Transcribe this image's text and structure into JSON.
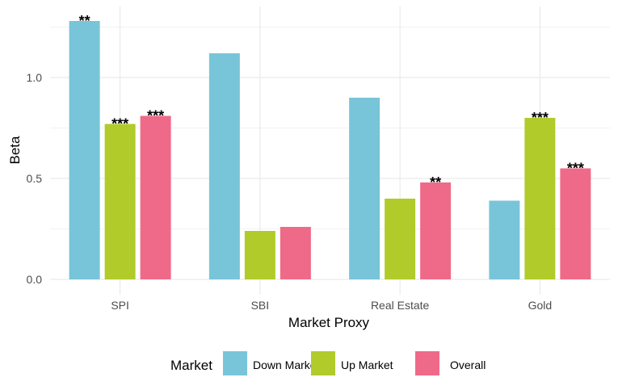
{
  "chart_data": {
    "type": "bar",
    "categories": [
      "SPI",
      "SBI",
      "Real Estate",
      "Gold"
    ],
    "series": [
      {
        "name": "Down Market",
        "values": [
          1.28,
          1.12,
          0.9,
          0.39
        ],
        "sig": [
          "**",
          "",
          "",
          ""
        ]
      },
      {
        "name": "Up Market",
        "values": [
          0.77,
          0.24,
          0.4,
          0.8
        ],
        "sig": [
          "***",
          "",
          "",
          "***"
        ]
      },
      {
        "name": "Overall",
        "values": [
          0.81,
          0.26,
          0.48,
          0.55
        ],
        "sig": [
          "***",
          "",
          "**",
          "***"
        ]
      }
    ],
    "xlabel": "Market Proxy",
    "ylabel": "Beta",
    "ylim": [
      0,
      1.35
    ],
    "yticks": [
      0.0,
      0.5,
      1.0
    ],
    "ytick_labels": [
      "0.0",
      "0.5",
      "1.0"
    ],
    "grid": true,
    "legend": {
      "title": "Market",
      "position": "bottom"
    },
    "colors": [
      "#78c5d9",
      "#b0cb2a",
      "#ef6a88"
    ]
  }
}
